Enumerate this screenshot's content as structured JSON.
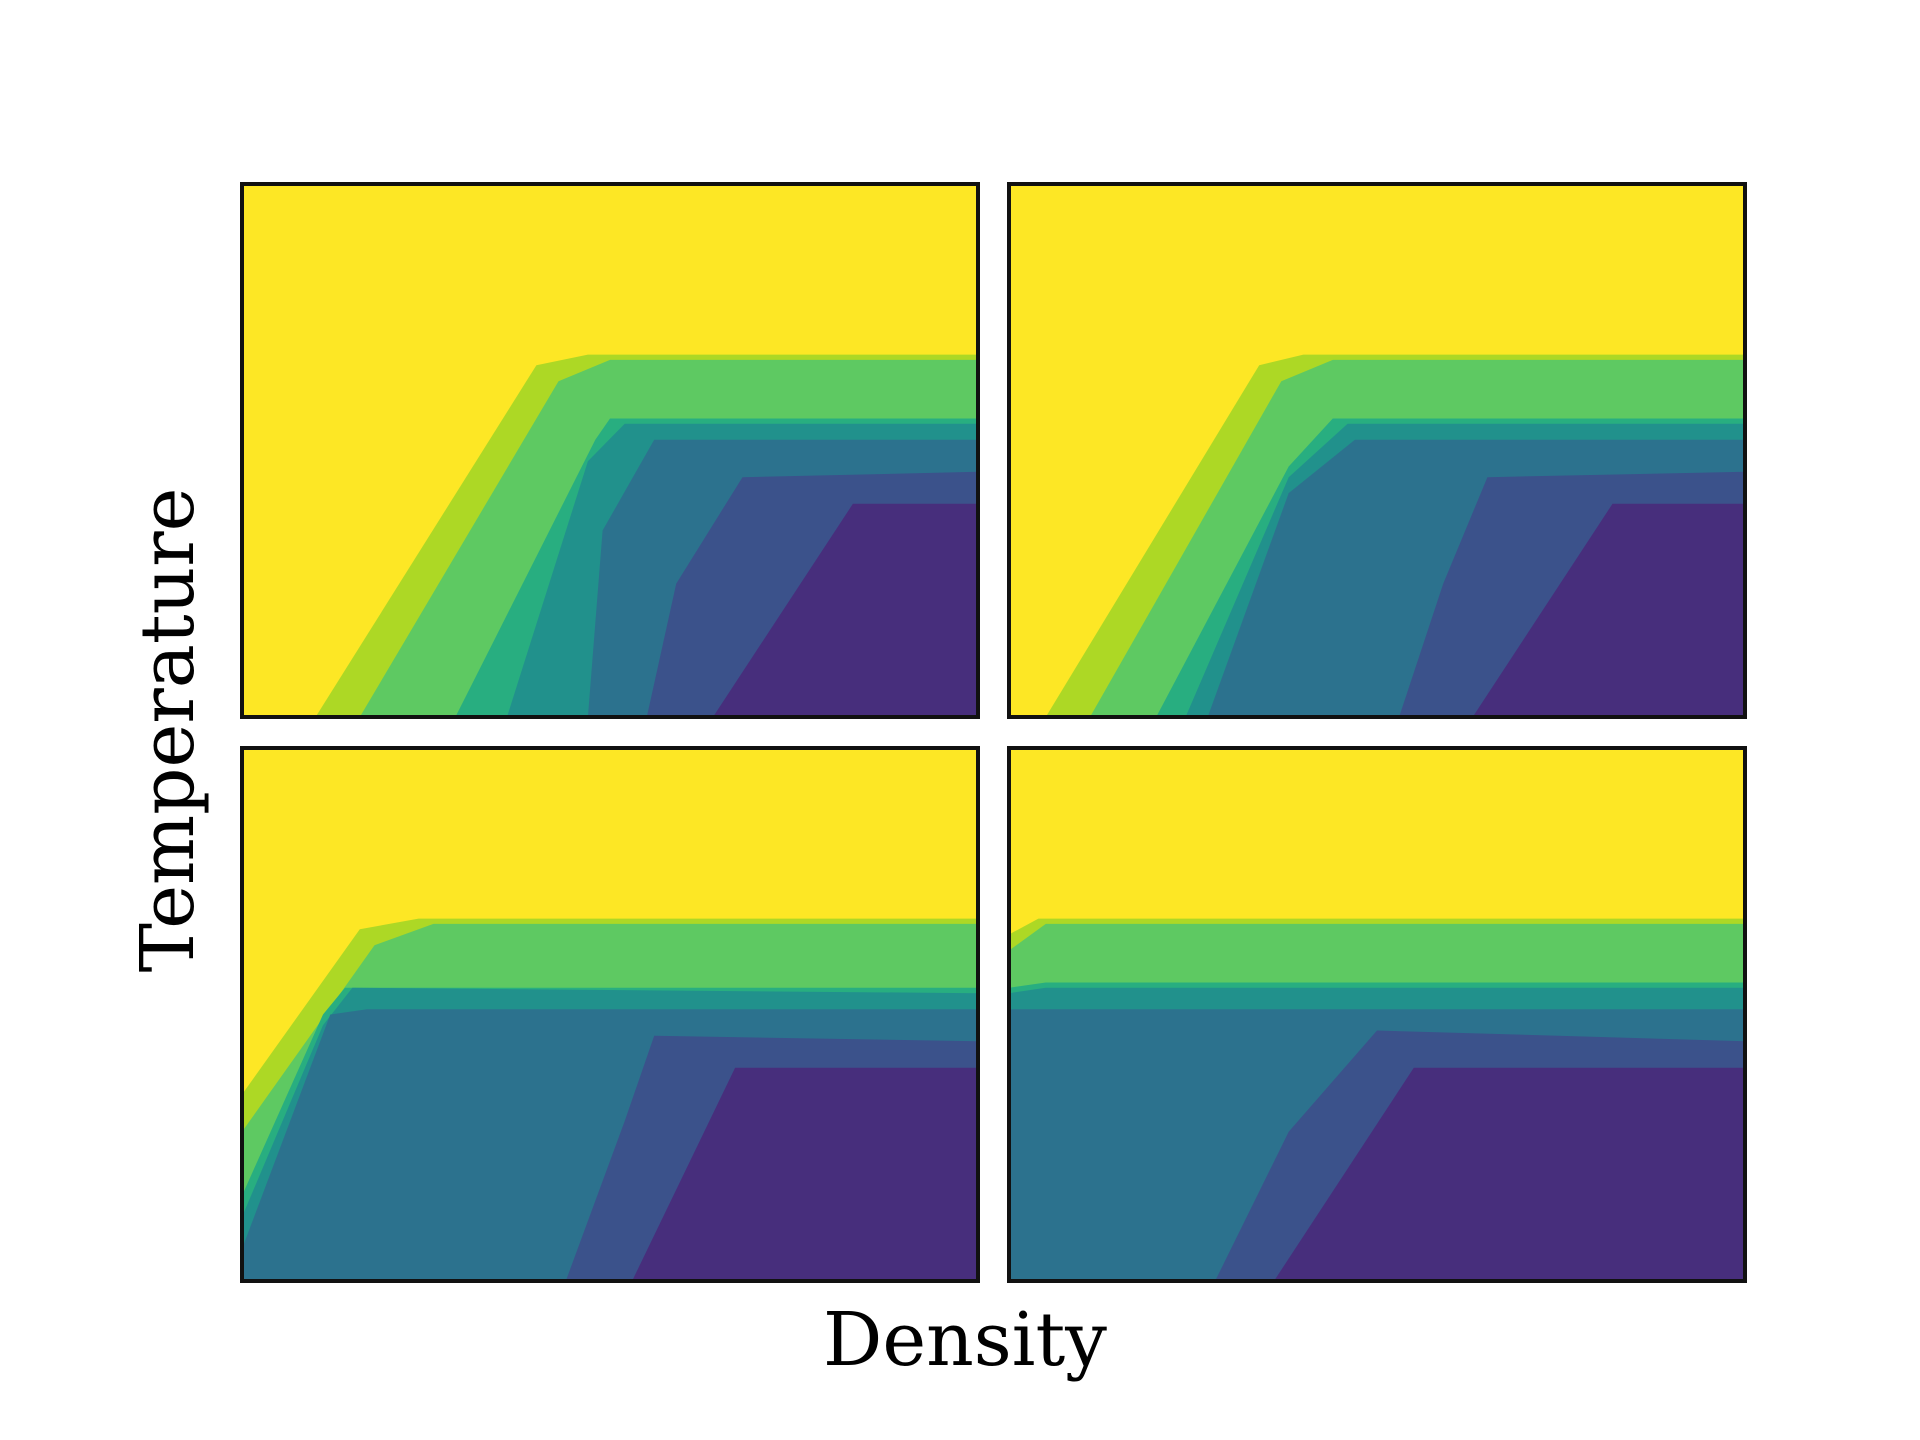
{
  "chart_data": [
    {
      "type": "heatmap",
      "panel": "top-left",
      "title": "",
      "xlabel": "Density",
      "ylabel": "Temperature",
      "grid": false,
      "tick_labels": "none",
      "levels": 8,
      "values_normalized": "0 = bottom, 1 = top of axis; x from 0 (left) to 1 (right)",
      "boundaries": [
        {
          "level_between": [
            7,
            6
          ],
          "x": [
            0.1,
            0.4,
            0.47,
            1.0
          ],
          "y": [
            0.0,
            0.66,
            0.68,
            0.68
          ]
        },
        {
          "level_between": [
            6,
            5
          ],
          "x": [
            0.16,
            0.43,
            0.5,
            1.0
          ],
          "y": [
            0.0,
            0.63,
            0.67,
            0.67
          ]
        },
        {
          "level_between": [
            5,
            4
          ],
          "x": [
            0.29,
            0.48,
            0.5,
            1.0
          ],
          "y": [
            0.0,
            0.52,
            0.56,
            0.56
          ]
        },
        {
          "level_between": [
            4,
            3
          ],
          "x": [
            0.36,
            0.47,
            0.52,
            1.0
          ],
          "y": [
            0.0,
            0.48,
            0.55,
            0.55
          ]
        },
        {
          "level_between": [
            3,
            2
          ],
          "x": [
            0.47,
            0.49,
            0.56,
            1.0
          ],
          "y": [
            0.0,
            0.35,
            0.52,
            0.52
          ]
        },
        {
          "level_between": [
            2,
            1
          ],
          "x": [
            0.55,
            0.59,
            0.68,
            1.0
          ],
          "y": [
            0.0,
            0.25,
            0.45,
            0.46
          ]
        },
        {
          "level_between": [
            1,
            0
          ],
          "x": [
            0.64,
            0.83,
            1.0
          ],
          "y": [
            0.0,
            0.4,
            0.4
          ]
        }
      ]
    },
    {
      "type": "heatmap",
      "panel": "top-right",
      "title": "",
      "xlabel": "Density",
      "ylabel": "Temperature",
      "grid": false,
      "tick_labels": "none",
      "levels": 8,
      "boundaries": [
        {
          "level_between": [
            7,
            6
          ],
          "x": [
            0.05,
            0.34,
            0.4,
            1.0
          ],
          "y": [
            0.0,
            0.66,
            0.68,
            0.68
          ]
        },
        {
          "level_between": [
            6,
            5
          ],
          "x": [
            0.11,
            0.37,
            0.44,
            1.0
          ],
          "y": [
            0.0,
            0.63,
            0.67,
            0.67
          ]
        },
        {
          "level_between": [
            5,
            4
          ],
          "x": [
            0.2,
            0.38,
            0.44,
            1.0
          ],
          "y": [
            0.0,
            0.47,
            0.56,
            0.56
          ]
        },
        {
          "level_between": [
            4,
            3
          ],
          "x": [
            0.24,
            0.38,
            0.46,
            1.0
          ],
          "y": [
            0.0,
            0.45,
            0.55,
            0.55
          ]
        },
        {
          "level_between": [
            3,
            2
          ],
          "x": [
            0.27,
            0.38,
            0.47,
            1.0
          ],
          "y": [
            0.0,
            0.42,
            0.52,
            0.52
          ]
        },
        {
          "level_between": [
            2,
            1
          ],
          "x": [
            0.53,
            0.59,
            0.65,
            1.0
          ],
          "y": [
            0.0,
            0.25,
            0.45,
            0.46
          ]
        },
        {
          "level_between": [
            1,
            0
          ],
          "x": [
            0.63,
            0.82,
            1.0
          ],
          "y": [
            0.0,
            0.4,
            0.4
          ]
        }
      ]
    },
    {
      "type": "heatmap",
      "panel": "bottom-left",
      "title": "",
      "xlabel": "Density",
      "ylabel": "Temperature",
      "grid": false,
      "tick_labels": "none",
      "levels": 8,
      "boundaries": [
        {
          "level_between": [
            7,
            6
          ],
          "x": [
            0.0,
            0.16,
            0.24,
            1.0
          ],
          "y": [
            0.35,
            0.66,
            0.68,
            0.68
          ]
        },
        {
          "level_between": [
            6,
            5
          ],
          "x": [
            0.0,
            0.18,
            0.26,
            1.0
          ],
          "y": [
            0.28,
            0.63,
            0.67,
            0.67
          ]
        },
        {
          "level_between": [
            5,
            4
          ],
          "x": [
            0.0,
            0.11,
            0.14,
            1.0
          ],
          "y": [
            0.16,
            0.5,
            0.55,
            0.55
          ]
        },
        {
          "level_between": [
            4,
            3
          ],
          "x": [
            0.0,
            0.11,
            0.15,
            1.0
          ],
          "y": [
            0.12,
            0.48,
            0.55,
            0.54
          ]
        },
        {
          "level_between": [
            3,
            2
          ],
          "x": [
            0.0,
            0.12,
            0.17,
            1.0
          ],
          "y": [
            0.06,
            0.5,
            0.51,
            0.51
          ]
        },
        {
          "level_between": [
            2,
            1
          ],
          "x": [
            0.44,
            0.52,
            0.56,
            1.0
          ],
          "y": [
            0.0,
            0.3,
            0.46,
            0.45
          ]
        },
        {
          "level_between": [
            1,
            0
          ],
          "x": [
            0.53,
            0.67,
            1.0
          ],
          "y": [
            0.0,
            0.4,
            0.4
          ]
        }
      ]
    },
    {
      "type": "heatmap",
      "panel": "bottom-right",
      "title": "",
      "xlabel": "Density",
      "ylabel": "Temperature",
      "grid": false,
      "tick_labels": "none",
      "levels": 8,
      "boundaries": [
        {
          "level_between": [
            7,
            6
          ],
          "x": [
            0.0,
            0.04,
            1.0
          ],
          "y": [
            0.65,
            0.68,
            0.68
          ]
        },
        {
          "level_between": [
            6,
            5
          ],
          "x": [
            0.0,
            0.05,
            1.0
          ],
          "y": [
            0.62,
            0.67,
            0.67
          ]
        },
        {
          "level_between": [
            5,
            4
          ],
          "x": [
            0.0,
            0.05,
            1.0
          ],
          "y": [
            0.55,
            0.56,
            0.56
          ]
        },
        {
          "level_between": [
            4,
            3
          ],
          "x": [
            0.0,
            0.05,
            1.0
          ],
          "y": [
            0.54,
            0.55,
            0.55
          ]
        },
        {
          "level_between": [
            3,
            2
          ],
          "x": [
            0.0,
            1.0
          ],
          "y": [
            0.51,
            0.51
          ]
        },
        {
          "level_between": [
            2,
            1
          ],
          "x": [
            0.28,
            0.38,
            0.5,
            1.0
          ],
          "y": [
            0.0,
            0.28,
            0.47,
            0.45
          ]
        },
        {
          "level_between": [
            1,
            0
          ],
          "x": [
            0.36,
            0.55,
            1.0
          ],
          "y": [
            0.0,
            0.4,
            0.4
          ]
        }
      ]
    }
  ],
  "colormap": {
    "name": "viridis",
    "colors": [
      "#440154",
      "#472e7c",
      "#3b528b",
      "#2c728e",
      "#21918c",
      "#28ae80",
      "#5ec962",
      "#add825",
      "#fde725"
    ]
  },
  "labels": {
    "xlabel": "Density",
    "ylabel": "Temperature"
  }
}
